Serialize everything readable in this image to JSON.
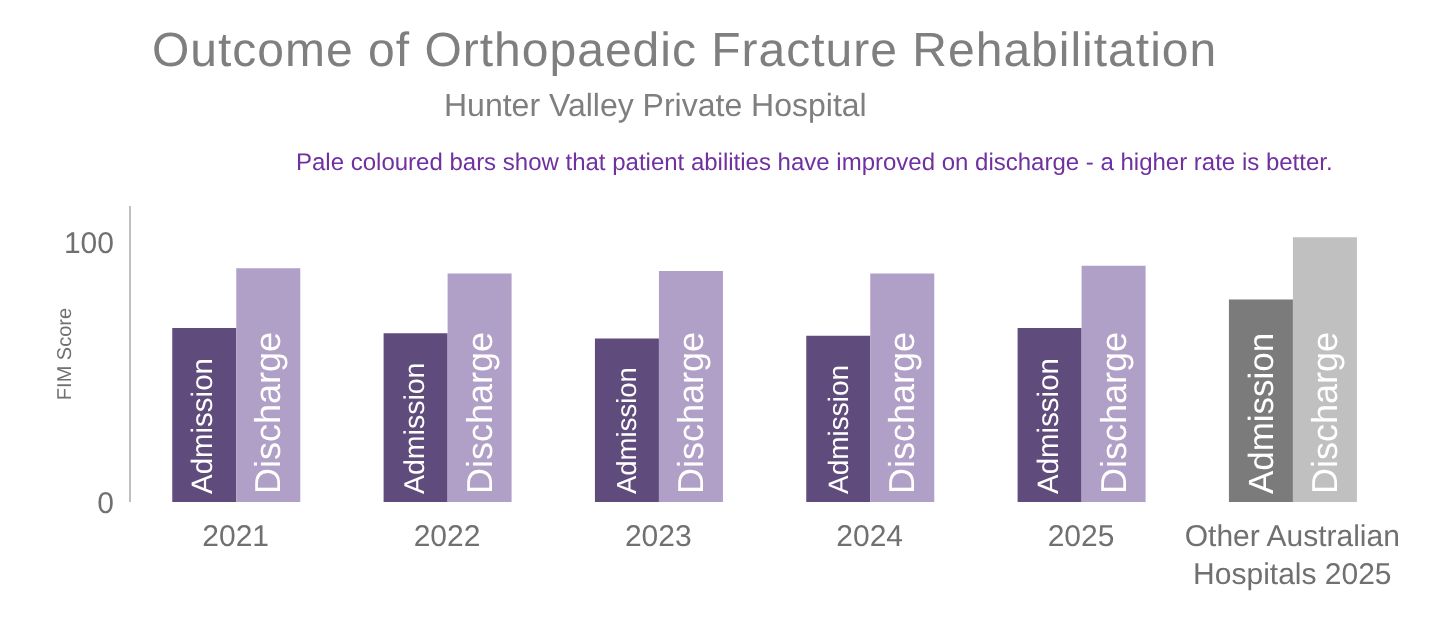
{
  "chart_data": {
    "type": "bar",
    "title": "Outcome of Orthopaedic Fracture Rehabilitation",
    "subtitle": "Hunter Valley Private Hospital",
    "annotations": [
      "Pale coloured bars show that patient abilities have improved on discharge - a higher rate is better."
    ],
    "ylabel": "FIM Score",
    "categories": [
      "2021",
      "2022",
      "2023",
      "2024",
      "2025",
      "Other Australian Hospitals 2025"
    ],
    "series": [
      {
        "name": "Admission",
        "colors": [
          "#5f4b7c",
          "#5f4b7c",
          "#5f4b7c",
          "#5f4b7c",
          "#5f4b7c",
          "#7b7b7b"
        ],
        "values": [
          67,
          65,
          63,
          64,
          67,
          78
        ]
      },
      {
        "name": "Discharge",
        "colors": [
          "#b09fc7",
          "#b09fc7",
          "#b09fc7",
          "#b09fc7",
          "#b09fc7",
          "#c0c0c0"
        ],
        "values": [
          90,
          88,
          89,
          88,
          91,
          102
        ]
      }
    ],
    "ylim": [
      0,
      114
    ],
    "yticks": [
      0,
      100
    ],
    "grid": false,
    "legend": false
  }
}
